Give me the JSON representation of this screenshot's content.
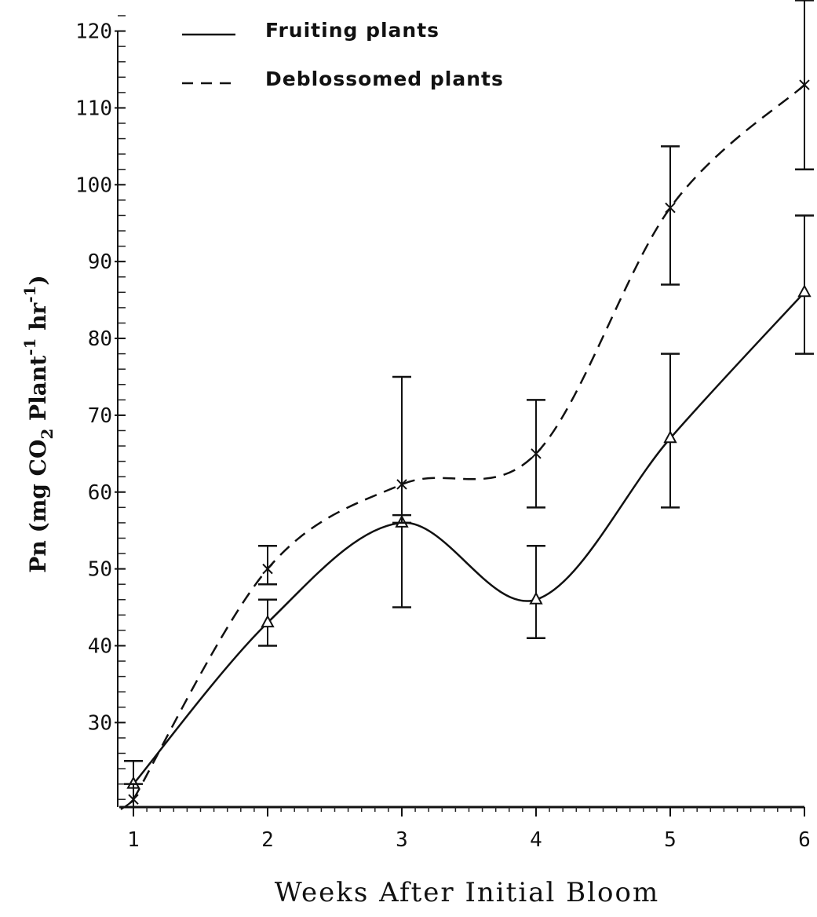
{
  "chart_data": {
    "type": "line",
    "title": "",
    "xlabel": "Weeks After Initial Bloom",
    "ylabel": {
      "prefix": "Pn (mg CO",
      "sub": "2",
      "middle": " Plant",
      "sup1": "-1",
      "space": " hr",
      "sup2": "-1",
      "suffix": ")"
    },
    "x": [
      1,
      2,
      3,
      4,
      5,
      6
    ],
    "x_ticks": [
      "1",
      "2",
      "3",
      "4",
      "5",
      "6"
    ],
    "y_ticks": [
      "30",
      "40",
      "50",
      "60",
      "70",
      "80",
      "90",
      "100",
      "110",
      "120"
    ],
    "xlim": [
      1,
      6
    ],
    "ylim": [
      19,
      122
    ],
    "grid": false,
    "legend_position": "top-left",
    "series": [
      {
        "name": "Fruiting plants",
        "line_style": "solid",
        "marker": "triangle",
        "values": [
          22,
          43,
          56,
          46,
          67,
          86
        ],
        "error_low": [
          19,
          40,
          45,
          41,
          58,
          78
        ],
        "error_high": [
          25,
          46,
          57,
          53,
          78,
          96
        ]
      },
      {
        "name": "Deblossomed plants",
        "line_style": "dashed",
        "marker": "asterisk",
        "values": [
          20,
          50,
          61,
          65,
          97,
          113
        ],
        "error_low": [
          19,
          48,
          56,
          58,
          87,
          102
        ],
        "error_high": [
          22,
          53,
          75,
          72,
          105,
          124
        ]
      }
    ]
  }
}
